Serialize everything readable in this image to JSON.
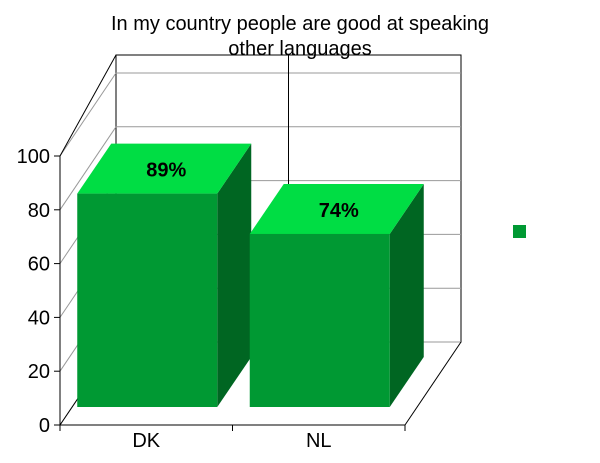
{
  "chart_data": {
    "type": "bar",
    "title_lines": [
      "In my country people are good at speaking",
      "other languages"
    ],
    "categories": [
      "DK",
      "NL"
    ],
    "values": [
      89,
      74
    ],
    "data_labels": [
      "89%",
      "74%"
    ],
    "y_ticks": [
      "0",
      "20",
      "40",
      "60",
      "80",
      "100"
    ],
    "ylim": [
      0,
      100
    ],
    "grid": true,
    "legend": "right",
    "colors": {
      "front": "#009933",
      "top": "#00dd44",
      "side": "#006622",
      "legend_swatch": "#009933"
    }
  }
}
